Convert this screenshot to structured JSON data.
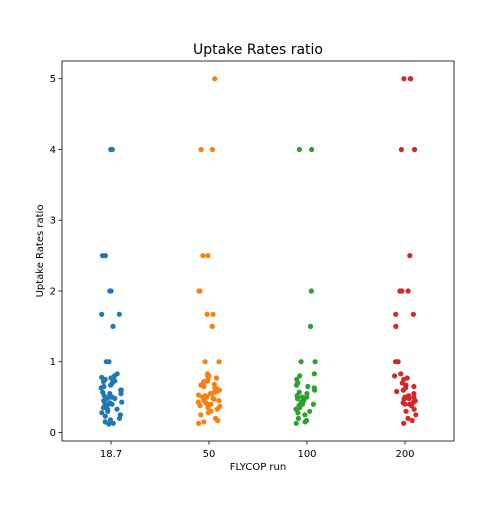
{
  "chart_data": {
    "type": "scatter",
    "style": "strip plot (jittered)",
    "title": "Uptake Rates ratio",
    "xlabel": "FLYCOP run",
    "ylabel": "Uptake Rates ratio",
    "ylim": [
      -0.12,
      5.25
    ],
    "yticks": [
      0,
      1,
      2,
      3,
      4,
      5
    ],
    "grid": false,
    "categories": [
      "18.7",
      "50",
      "100",
      "200"
    ],
    "series": [
      {
        "category": "18.7",
        "color": "#1f77b4",
        "values": [
          4.0,
          4.0,
          2.5,
          2.5,
          2.0,
          2.0,
          1.67,
          1.67,
          1.5,
          1.0,
          1.0,
          0.83,
          0.8,
          0.78,
          0.77,
          0.75,
          0.73,
          0.72,
          0.7,
          0.67,
          0.65,
          0.63,
          0.6,
          0.6,
          0.57,
          0.55,
          0.55,
          0.52,
          0.5,
          0.5,
          0.48,
          0.47,
          0.45,
          0.43,
          0.42,
          0.4,
          0.4,
          0.38,
          0.35,
          0.33,
          0.32,
          0.3,
          0.28,
          0.25,
          0.23,
          0.2,
          0.18,
          0.15,
          0.13,
          0.12
        ]
      },
      {
        "category": "50",
        "color": "#ff7f0e",
        "values": [
          5.0,
          4.0,
          4.0,
          2.5,
          2.5,
          2.0,
          2.0,
          1.67,
          1.67,
          1.5,
          1.0,
          1.0,
          0.83,
          0.8,
          0.8,
          0.77,
          0.75,
          0.73,
          0.72,
          0.7,
          0.68,
          0.67,
          0.65,
          0.63,
          0.62,
          0.6,
          0.6,
          0.58,
          0.57,
          0.55,
          0.55,
          0.53,
          0.52,
          0.5,
          0.5,
          0.5,
          0.48,
          0.47,
          0.45,
          0.45,
          0.43,
          0.42,
          0.4,
          0.4,
          0.38,
          0.37,
          0.35,
          0.33,
          0.3,
          0.28,
          0.25,
          0.2,
          0.17,
          0.15,
          0.13
        ]
      },
      {
        "category": "100",
        "color": "#2ca02c",
        "values": [
          4.0,
          4.0,
          2.0,
          1.5,
          1.0,
          1.0,
          0.83,
          0.8,
          0.75,
          0.7,
          0.67,
          0.65,
          0.63,
          0.6,
          0.57,
          0.55,
          0.52,
          0.5,
          0.5,
          0.48,
          0.45,
          0.43,
          0.4,
          0.4,
          0.38,
          0.35,
          0.33,
          0.3,
          0.28,
          0.25,
          0.2,
          0.17,
          0.15,
          0.13
        ]
      },
      {
        "category": "200",
        "color": "#d62728",
        "values": [
          5.0,
          5.0,
          5.0,
          4.0,
          4.0,
          2.5,
          2.0,
          2.0,
          2.0,
          1.67,
          1.67,
          1.5,
          1.0,
          1.0,
          0.83,
          0.8,
          0.77,
          0.75,
          0.7,
          0.67,
          0.65,
          0.63,
          0.6,
          0.58,
          0.55,
          0.52,
          0.5,
          0.5,
          0.48,
          0.47,
          0.45,
          0.43,
          0.42,
          0.4,
          0.4,
          0.38,
          0.33,
          0.3,
          0.25,
          0.2,
          0.17,
          0.13
        ]
      }
    ]
  }
}
